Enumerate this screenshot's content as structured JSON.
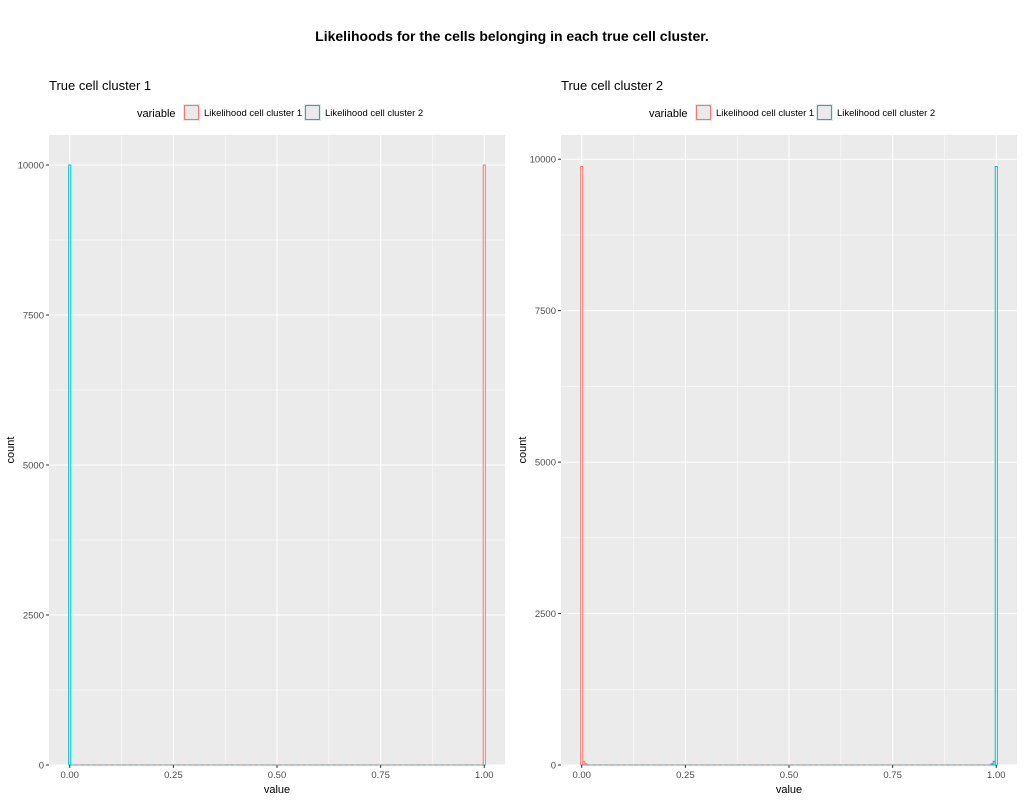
{
  "figure": {
    "title": "Likelihoods for the cells belonging in each true cell cluster."
  },
  "colors": {
    "series1": "#F8766D",
    "series2": "#00BFC4",
    "panel_bg": "#EBEBEB",
    "grid": "#FFFFFF"
  },
  "chart_data": [
    {
      "type": "histogram",
      "title": "True cell cluster 1",
      "xlabel": "value",
      "ylabel": "count",
      "xlim": [
        -0.05,
        1.05
      ],
      "ylim": [
        0,
        10500
      ],
      "xticks": [
        0,
        0.25,
        0.5,
        0.75,
        1
      ],
      "xtick_labels": [
        "0.00",
        "0.25",
        "0.50",
        "0.75",
        "1.00"
      ],
      "yticks": [
        0,
        2500,
        5000,
        7500,
        10000
      ],
      "ytick_labels": [
        "0",
        "2500",
        "5000",
        "7500",
        "10000"
      ],
      "legend_title": "variable",
      "legend_position": "top",
      "grid": true,
      "bin_width": 0.005,
      "series": [
        {
          "name": "Likelihood cell cluster 1",
          "bins": [
            [
              1.0,
              10000
            ]
          ]
        },
        {
          "name": "Likelihood cell cluster 2",
          "bins": [
            [
              0.0,
              10000
            ]
          ]
        }
      ]
    },
    {
      "type": "histogram",
      "title": "True cell cluster 2",
      "xlabel": "value",
      "ylabel": "count",
      "xlim": [
        -0.05,
        1.05
      ],
      "ylim": [
        0,
        10400
      ],
      "xticks": [
        0,
        0.25,
        0.5,
        0.75,
        1
      ],
      "xtick_labels": [
        "0.00",
        "0.25",
        "0.50",
        "0.75",
        "1.00"
      ],
      "yticks": [
        0,
        2500,
        5000,
        7500,
        10000
      ],
      "ytick_labels": [
        "0",
        "2500",
        "5000",
        "7500",
        "10000"
      ],
      "legend_title": "variable",
      "legend_position": "top",
      "grid": true,
      "bin_width": 0.005,
      "series": [
        {
          "name": "Likelihood cell cluster 1",
          "bins": [
            [
              0.0,
              9880
            ],
            [
              0.005,
              60
            ],
            [
              0.01,
              20
            ]
          ]
        },
        {
          "name": "Likelihood cell cluster 2",
          "bins": [
            [
              0.99,
              20
            ],
            [
              0.995,
              60
            ],
            [
              1.0,
              9880
            ]
          ]
        }
      ]
    }
  ]
}
